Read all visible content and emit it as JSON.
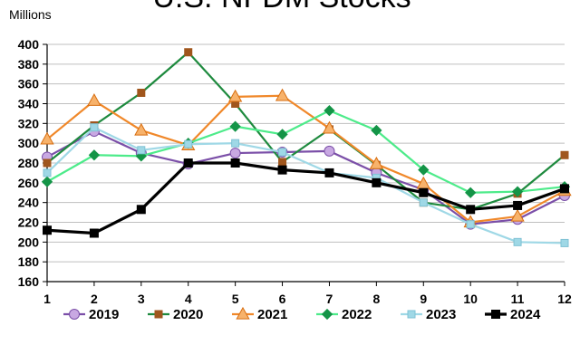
{
  "chart_data": {
    "type": "line",
    "title": "U.S. NFDM Stocks",
    "ylabel": "Millions",
    "xlabel": "",
    "x": [
      1,
      2,
      3,
      4,
      5,
      6,
      7,
      8,
      9,
      10,
      11,
      12
    ],
    "x_tick_labels": [
      "1",
      "2",
      "3",
      "4",
      "5",
      "6",
      "7",
      "8",
      "9",
      "10",
      "11",
      "12"
    ],
    "ylim": [
      160,
      400
    ],
    "y_ticks": [
      160,
      180,
      200,
      220,
      240,
      260,
      280,
      300,
      320,
      340,
      360,
      380,
      400
    ],
    "y_tick_labels": [
      "160",
      "180",
      "200",
      "220",
      "240",
      "260",
      "280",
      "300",
      "320",
      "340",
      "360",
      "380",
      "400"
    ],
    "grid": "horizontal",
    "legend_position": "bottom",
    "series": [
      {
        "name": "2019",
        "color": "#7B4FA8",
        "marker": "circle",
        "values": [
          286,
          312,
          290,
          279,
          290,
          291,
          292,
          270,
          253,
          218,
          223,
          247
        ]
      },
      {
        "name": "2020",
        "color": "#1E8A3E",
        "marker": "square",
        "marker_color": "#A0561D",
        "values": [
          280,
          318,
          351,
          392,
          340,
          281,
          314,
          278,
          240,
          233,
          249,
          288
        ]
      },
      {
        "name": "2021",
        "color": "#F0882A",
        "marker": "triangle",
        "values": [
          304,
          343,
          313,
          298,
          347,
          348,
          315,
          279,
          259,
          220,
          226,
          252
        ]
      },
      {
        "name": "2022",
        "color": "#4DEB8A",
        "marker": "diamond",
        "marker_color": "#149447",
        "values": [
          261,
          288,
          287,
          300,
          317,
          309,
          333,
          313,
          273,
          250,
          251,
          256
        ]
      },
      {
        "name": "2023",
        "color": "#9FD8E6",
        "marker": "square",
        "values": [
          270,
          316,
          293,
          299,
          300,
          291,
          270,
          265,
          240,
          218,
          200,
          199
        ]
      },
      {
        "name": "2024",
        "color": "#000000",
        "marker": "square",
        "values": [
          212,
          209,
          233,
          280,
          280,
          273,
          270,
          260,
          250,
          233,
          237,
          254
        ]
      }
    ]
  }
}
